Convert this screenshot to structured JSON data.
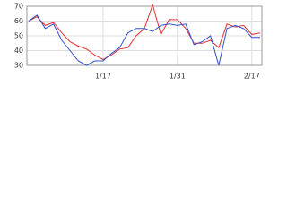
{
  "chart_data": {
    "type": "line",
    "categories": [
      null,
      null,
      null,
      null,
      null,
      null,
      null,
      null,
      null,
      "1/17",
      null,
      null,
      null,
      null,
      null,
      null,
      null,
      null,
      "1/31",
      null,
      null,
      null,
      null,
      null,
      null,
      null,
      null,
      "2/17",
      null
    ],
    "series": [
      {
        "color": "#e03030",
        "values": [
          60,
          63,
          57,
          59,
          52,
          46,
          43,
          41,
          37,
          34,
          37,
          41,
          42,
          50,
          55,
          71,
          51,
          61,
          61,
          55,
          45,
          45,
          47,
          42,
          58,
          56,
          57,
          51,
          52
        ]
      },
      {
        "color": "#3050c8",
        "values": [
          60,
          64,
          55,
          58,
          47,
          40,
          33,
          30,
          33,
          33,
          38,
          42,
          52,
          55,
          55,
          53,
          57,
          58,
          57,
          58,
          44,
          46,
          50,
          30,
          55,
          57,
          55,
          49,
          49
        ]
      }
    ],
    "ylim": [
      30,
      70
    ],
    "yticks": [
      30,
      40,
      50,
      60,
      70
    ],
    "grid": true
  }
}
